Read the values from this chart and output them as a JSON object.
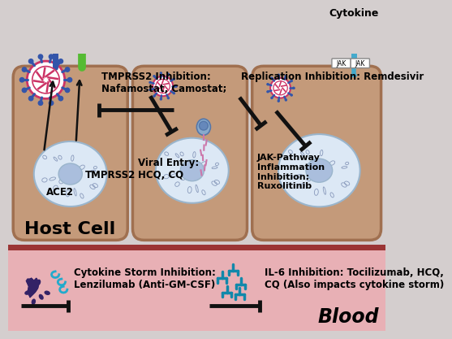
{
  "bg_color": "#d4cece",
  "cell_color": "#c49a7a",
  "cell_border_color": "#a07050",
  "nucleus_outer_color": "#dce8f5",
  "nucleus_border": "#9ab5cc",
  "nucleus_inner_color": "#aabedd",
  "blood_bg_color": "#e8b0b5",
  "blood_dark_color": "#9b3535",
  "text_color": "#111111",
  "spike_color_blue": "#3355aa",
  "virus_pink": "#cc3366",
  "green_receptor": "#5aaa44",
  "blue_receptor": "#3355aa",
  "jak_teal": "#44aacc",
  "jak_purple": "#884499",
  "cytokine_storm_color": "#332266",
  "il6_color": "#1188aa",
  "host_cell_label": "Host Cell",
  "blood_label": "Blood",
  "tmprss2_inhibition": "TMPRSS2 Inhibition:\nNafamostat, Camostat;",
  "replication_inhibition": "Replication Inhibition: Remdesivir",
  "viral_entry": "Viral Entry:\nHCQ, CQ",
  "jak_label": "JAK-Pathway\nInflammation\nInhibition:\nRuxolitinib",
  "cytokine_label": "Cytokine",
  "cytokine_storm_label": "Cytokine Storm Inhibition:\nLenzilumab (Anti-GM-CSF)",
  "il6_label": "IL-6 Inhibition: Tocilizumab, HCQ,\nCQ (Also impacts cytokine storm)",
  "ace2_label": "ACE2",
  "tmprss2_label": "TMPRSS2"
}
